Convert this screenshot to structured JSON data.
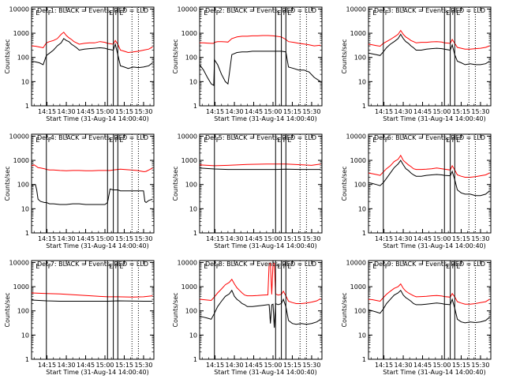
{
  "figure": {
    "xlabel": "Start Time (31-Aug-14 14:00:40)",
    "ylabel": "Counts/sec",
    "xticks": [
      "14:15",
      "14:30",
      "14:45",
      "15:00",
      "15:15",
      "15:30"
    ],
    "xtick_minutes": [
      15,
      30,
      45,
      60,
      75,
      90
    ],
    "yticks": [
      "1",
      "10",
      "100",
      "1000",
      "10000"
    ],
    "ytick_values": [
      1,
      10,
      100,
      1000,
      10000
    ],
    "xlim_minutes": [
      3,
      98
    ],
    "ylim": [
      1,
      12000
    ],
    "yscale": "log",
    "line_colors": {
      "events": "#000000",
      "lld": "#ff0000"
    },
    "solid_markers_minutes": [
      14.5,
      62,
      66.5,
      70
    ],
    "dotted_markers_minutes": [
      81,
      86
    ],
    "panel_labels": [
      "E",
      "F",
      "E",
      "F",
      "E"
    ]
  },
  "chart_data": [
    {
      "type": "line",
      "title": "Det  1: BLACK = Events, RED = LLD",
      "x": [
        3,
        6,
        9,
        12,
        14.5,
        17,
        20,
        23,
        26,
        28,
        30,
        32,
        34,
        36,
        38,
        40,
        44,
        48,
        52,
        56,
        60,
        62,
        66.5,
        68,
        70,
        72,
        75,
        78,
        82,
        86,
        90,
        94,
        97
      ],
      "series": [
        {
          "color": "black",
          "values": [
            70,
            65,
            60,
            50,
            120,
            150,
            200,
            300,
            400,
            600,
            500,
            450,
            350,
            300,
            250,
            200,
            220,
            230,
            240,
            250,
            240,
            220,
            200,
            350,
            130,
            45,
            40,
            35,
            40,
            38,
            40,
            45,
            60
          ]
        },
        {
          "color": "red",
          "values": [
            300,
            290,
            270,
            250,
            400,
            450,
            500,
            600,
            900,
            1100,
            800,
            650,
            550,
            450,
            400,
            350,
            380,
            400,
            400,
            450,
            420,
            380,
            350,
            500,
            350,
            200,
            180,
            160,
            170,
            180,
            200,
            220,
            270
          ]
        }
      ]
    },
    {
      "type": "line",
      "title": "Det  2: BLACK = Events, RED = LLD",
      "x": [
        3,
        6,
        9,
        12,
        14,
        14.5,
        17,
        20,
        23,
        25,
        28,
        32,
        36,
        40,
        44,
        48,
        52,
        56,
        60,
        62,
        66.5,
        70,
        72,
        76,
        80,
        84,
        88,
        92,
        97
      ],
      "series": [
        {
          "color": "black",
          "values": [
            50,
            30,
            15,
            8,
            7,
            80,
            50,
            20,
            10,
            8,
            130,
            160,
            170,
            170,
            180,
            180,
            180,
            180,
            180,
            180,
            180,
            170,
            40,
            35,
            30,
            30,
            25,
            15,
            10
          ]
        },
        {
          "color": "red",
          "values": [
            400,
            400,
            390,
            380,
            380,
            420,
            450,
            450,
            440,
            430,
            600,
            700,
            750,
            750,
            780,
            780,
            800,
            800,
            780,
            760,
            700,
            550,
            450,
            420,
            380,
            360,
            330,
            300,
            320
          ]
        }
      ]
    },
    {
      "type": "line",
      "title": "Det  3: BLACK = Events, RED = LLD",
      "x": [
        3,
        6,
        9,
        12,
        14.5,
        17,
        20,
        23,
        26,
        28,
        30,
        32,
        34,
        36,
        38,
        40,
        44,
        48,
        52,
        56,
        60,
        62,
        66.5,
        68,
        70,
        72,
        75,
        78,
        82,
        86,
        90,
        94,
        97
      ],
      "series": [
        {
          "color": "black",
          "values": [
            150,
            140,
            130,
            120,
            170,
            250,
            350,
            450,
            600,
            900,
            600,
            450,
            380,
            300,
            250,
            200,
            200,
            220,
            230,
            240,
            230,
            220,
            200,
            330,
            130,
            70,
            60,
            50,
            55,
            50,
            50,
            55,
            70
          ]
        },
        {
          "color": "red",
          "values": [
            350,
            330,
            310,
            290,
            380,
            450,
            550,
            700,
            900,
            1300,
            900,
            700,
            600,
            500,
            450,
            400,
            420,
            420,
            440,
            450,
            430,
            400,
            380,
            550,
            380,
            260,
            240,
            220,
            220,
            230,
            240,
            260,
            300
          ]
        }
      ]
    },
    {
      "type": "line",
      "title": "Det  4: BLACK = Events, RED = LLD",
      "x": [
        3,
        5,
        6,
        7,
        8,
        10,
        13,
        14.5,
        17,
        20,
        25,
        30,
        35,
        40,
        45,
        50,
        55,
        60,
        62,
        64,
        66.5,
        70,
        72,
        75,
        80,
        85,
        90,
        91,
        92,
        94,
        97
      ],
      "series": [
        {
          "color": "black",
          "values": [
            90,
            100,
            100,
            60,
            25,
            20,
            18,
            18,
            16,
            16,
            15,
            15,
            16,
            16,
            15,
            15,
            15,
            15,
            18,
            65,
            60,
            60,
            55,
            55,
            55,
            55,
            55,
            20,
            18,
            22,
            25
          ]
        },
        {
          "color": "red",
          "values": [
            600,
            650,
            600,
            550,
            500,
            480,
            450,
            420,
            400,
            400,
            380,
            370,
            380,
            380,
            370,
            370,
            380,
            380,
            380,
            380,
            400,
            420,
            430,
            420,
            400,
            380,
            340,
            340,
            350,
            400,
            480
          ]
        }
      ]
    },
    {
      "type": "line",
      "title": "Det  5: BLACK = Events, RED = LLD",
      "x": [
        3,
        14.5,
        25,
        40,
        55,
        62,
        70,
        81,
        90,
        97
      ],
      "series": [
        {
          "color": "black",
          "values": [
            480,
            440,
            420,
            420,
            420,
            420,
            430,
            420,
            420,
            420
          ]
        },
        {
          "color": "red",
          "values": [
            650,
            600,
            620,
            680,
            700,
            700,
            700,
            660,
            620,
            700
          ]
        }
      ]
    },
    {
      "type": "line",
      "title": "Det  6: BLACK = Events, RED = LLD",
      "x": [
        3,
        6,
        9,
        12,
        14.5,
        17,
        20,
        23,
        26,
        28,
        30,
        32,
        34,
        36,
        38,
        40,
        44,
        48,
        52,
        56,
        60,
        62,
        66.5,
        68,
        70,
        72,
        75,
        78,
        82,
        86,
        90,
        94,
        97
      ],
      "series": [
        {
          "color": "black",
          "values": [
            120,
            110,
            100,
            90,
            120,
            180,
            300,
            500,
            700,
            1000,
            650,
            450,
            380,
            300,
            250,
            220,
            220,
            240,
            250,
            260,
            250,
            240,
            230,
            350,
            160,
            60,
            45,
            40,
            40,
            35,
            35,
            40,
            55
          ]
        },
        {
          "color": "red",
          "values": [
            300,
            280,
            260,
            240,
            330,
            450,
            600,
            900,
            1100,
            1600,
            1000,
            800,
            650,
            550,
            450,
            420,
            420,
            430,
            450,
            480,
            450,
            430,
            400,
            600,
            400,
            250,
            220,
            200,
            200,
            210,
            230,
            250,
            300
          ]
        }
      ]
    },
    {
      "type": "line",
      "title": "Det  7: BLACK = Events, RED = LLD",
      "x": [
        3,
        14.5,
        25,
        40,
        55,
        62,
        70,
        81,
        90,
        97
      ],
      "series": [
        {
          "color": "black",
          "values": [
            280,
            260,
            250,
            250,
            250,
            250,
            260,
            255,
            250,
            250
          ]
        },
        {
          "color": "red",
          "values": [
            550,
            520,
            500,
            450,
            400,
            380,
            380,
            370,
            380,
            420
          ]
        }
      ]
    },
    {
      "type": "line",
      "title": "Det  8: BLACK = Events, RED = LLD",
      "x": [
        3,
        6,
        9,
        12,
        14.5,
        17,
        20,
        23,
        26,
        28,
        30,
        32,
        34,
        36,
        38,
        40,
        44,
        48,
        52,
        56,
        57,
        58,
        59,
        60,
        61,
        62,
        64,
        66.5,
        68,
        70,
        72,
        75,
        78,
        82,
        86,
        90,
        94,
        97
      ],
      "series": [
        {
          "color": "black",
          "values": [
            60,
            55,
            50,
            45,
            80,
            150,
            250,
            400,
            500,
            700,
            400,
            300,
            250,
            200,
            180,
            150,
            150,
            160,
            170,
            180,
            180,
            30,
            180,
            190,
            20,
            200,
            180,
            200,
            300,
            150,
            40,
            30,
            28,
            30,
            28,
            30,
            35,
            45
          ]
        },
        {
          "color": "red",
          "values": [
            300,
            290,
            280,
            270,
            380,
            550,
            800,
            1200,
            1500,
            2000,
            1300,
            900,
            700,
            550,
            450,
            420,
            420,
            430,
            450,
            460,
            9000,
            9000,
            480,
            9000,
            9000,
            500,
            450,
            480,
            650,
            420,
            250,
            220,
            200,
            200,
            210,
            230,
            260,
            320
          ]
        }
      ]
    },
    {
      "type": "line",
      "title": "Det  9: BLACK = Events, RED = LLD",
      "x": [
        3,
        6,
        9,
        12,
        14.5,
        17,
        20,
        23,
        26,
        28,
        30,
        32,
        34,
        36,
        38,
        40,
        44,
        48,
        52,
        56,
        60,
        62,
        66.5,
        68,
        70,
        72,
        75,
        78,
        82,
        86,
        90,
        94,
        97
      ],
      "series": [
        {
          "color": "black",
          "values": [
            110,
            100,
            90,
            80,
            120,
            200,
            300,
            450,
            550,
            700,
            450,
            350,
            300,
            250,
            200,
            180,
            180,
            190,
            200,
            210,
            200,
            190,
            180,
            300,
            130,
            45,
            35,
            32,
            35,
            33,
            35,
            40,
            55
          ]
        },
        {
          "color": "red",
          "values": [
            300,
            290,
            270,
            250,
            350,
            480,
            650,
            850,
            1000,
            1300,
            850,
            650,
            550,
            480,
            420,
            380,
            390,
            400,
            420,
            430,
            410,
            390,
            370,
            520,
            380,
            240,
            210,
            190,
            190,
            200,
            220,
            240,
            300
          ]
        }
      ]
    }
  ]
}
